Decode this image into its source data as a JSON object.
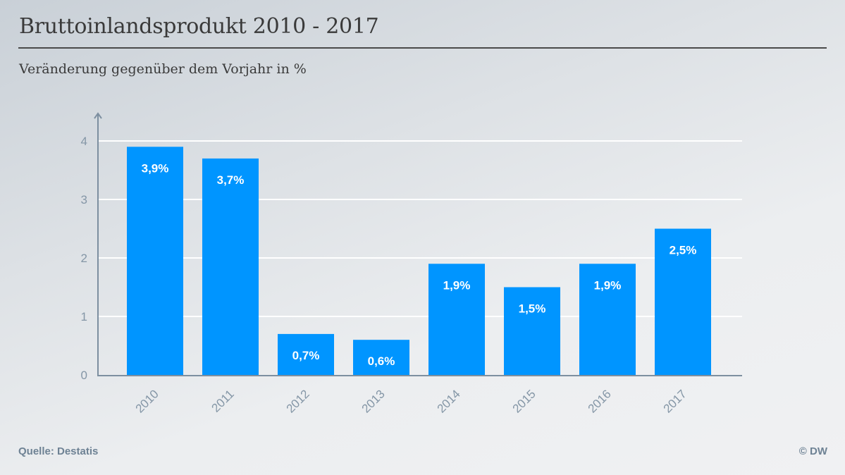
{
  "header": {
    "title": "Bruttoinlandsprodukt 2010 - 2017",
    "subtitle": "Veränderung gegenüber dem Vorjahr in %"
  },
  "footer": {
    "source": "Quelle: Destatis",
    "copyright": "© DW"
  },
  "colors": {
    "bar": "#0095ff",
    "bar_label": "#ffffff",
    "axis": "#7d8fa0",
    "tick_label": "#8496a6",
    "gridline": "#ffffff"
  },
  "chart_data": {
    "type": "bar",
    "title": "Bruttoinlandsprodukt 2010 - 2017",
    "subtitle": "Veränderung gegenüber dem Vorjahr in %",
    "xlabel": "",
    "ylabel": "",
    "categories": [
      "2010",
      "2011",
      "2012",
      "2013",
      "2014",
      "2015",
      "2016",
      "2017"
    ],
    "values": [
      3.9,
      3.7,
      0.7,
      0.6,
      1.9,
      1.5,
      1.9,
      2.5
    ],
    "data_labels": [
      "3,9%",
      "3,7%",
      "0,7%",
      "0,6%",
      "1,9%",
      "1,5%",
      "1,9%",
      "2,5%"
    ],
    "ylim": [
      0,
      4.4
    ],
    "yticks": [
      0,
      1,
      2,
      3,
      4
    ],
    "ytick_labels": [
      "0",
      "1",
      "2",
      "3",
      "4"
    ],
    "grid": true,
    "legend": "none",
    "source": "Quelle: Destatis"
  }
}
